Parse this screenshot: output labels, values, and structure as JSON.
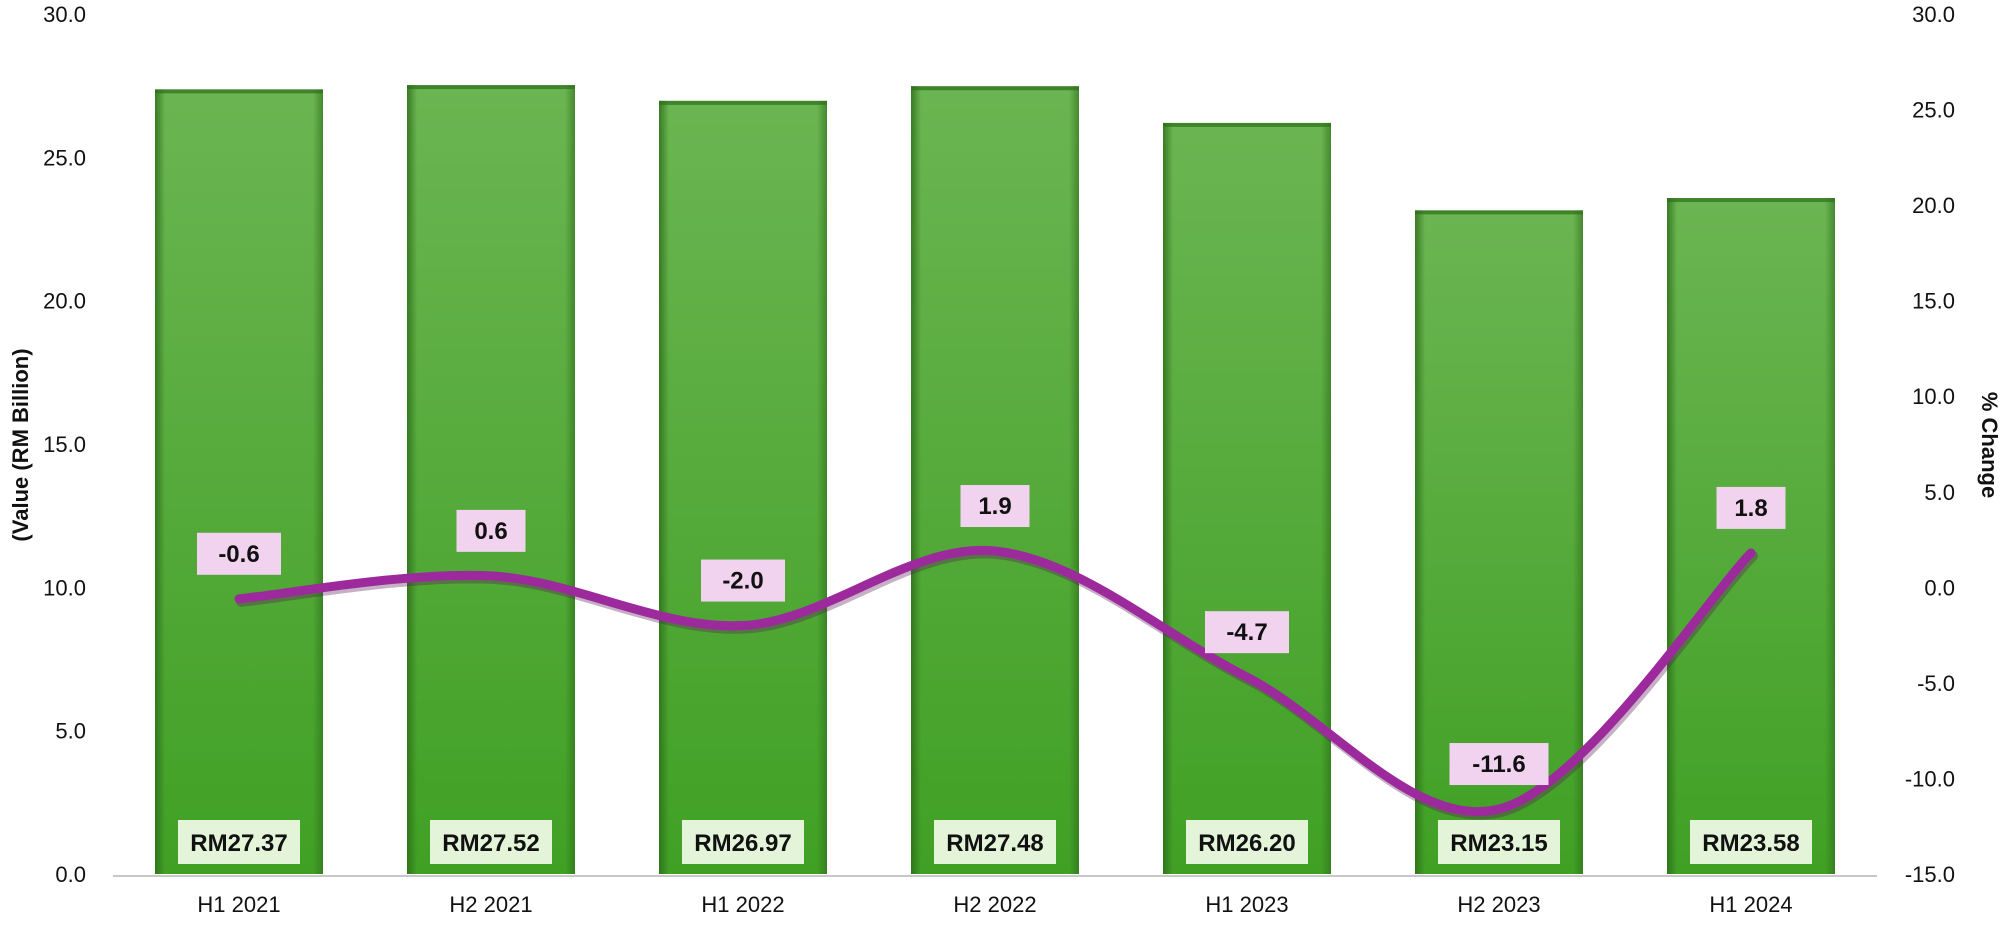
{
  "chart_data": {
    "type": "bar+line",
    "categories": [
      "H1 2021",
      "H2 2021",
      "H1 2022",
      "H2 2022",
      "H1 2023",
      "H2 2023",
      "H1 2024"
    ],
    "series": [
      {
        "type": "bar",
        "axis": "left",
        "values": [
          27.37,
          27.52,
          26.97,
          27.48,
          26.2,
          23.15,
          23.58
        ],
        "labels": [
          "RM27.37",
          "RM27.52",
          "RM26.97",
          "RM27.48",
          "RM26.20",
          "RM23.15",
          "RM23.58"
        ],
        "color": "#4ea62e"
      },
      {
        "type": "line",
        "axis": "right",
        "values": [
          -0.6,
          0.6,
          -2.0,
          1.9,
          -4.7,
          -11.6,
          1.8
        ],
        "labels": [
          "-0.6",
          "0.6",
          "-2.0",
          "1.9",
          "-4.7",
          "-11.6",
          "1.8"
        ],
        "color": "#9c2a9c",
        "smooth": true
      }
    ],
    "ylabel": "(Value (RM Billion)",
    "y2label": "% Change",
    "ylim": [
      0,
      30
    ],
    "y2lim": [
      -15,
      30
    ],
    "yticks": [
      "0.0",
      "5.0",
      "10.0",
      "15.0",
      "20.0",
      "25.0",
      "30.0"
    ],
    "y2ticks": [
      "-15.0",
      "-10.0",
      "-5.0",
      "0.0",
      "5.0",
      "10.0",
      "15.0",
      "20.0",
      "25.0",
      "30.0"
    ],
    "grid": false,
    "legend": "none"
  }
}
